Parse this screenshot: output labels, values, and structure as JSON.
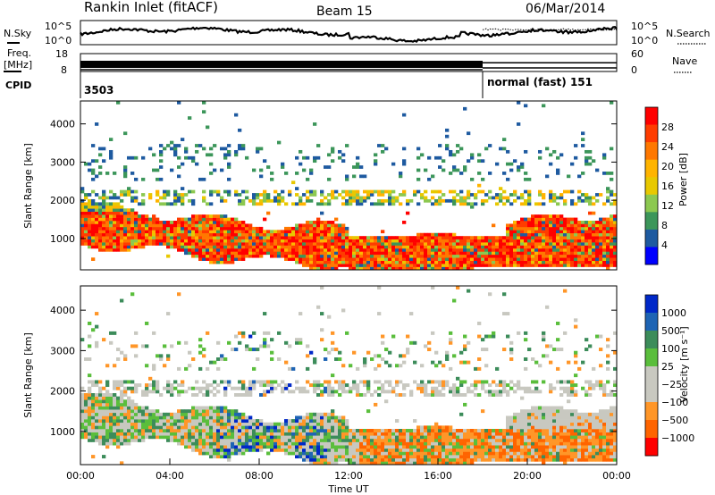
{
  "header": {
    "station": "Rankin Inlet (fitACF)",
    "beam": "Beam 15",
    "date": "06/Mar/2014"
  },
  "top_panels": {
    "nsky_label": "N.Sky",
    "nsearch_label": "N.Search",
    "noise_ticks": [
      "10^5",
      "10^0"
    ],
    "freq_label_line1": "Freq.",
    "freq_label_line2": "[MHz]",
    "freq_ticks": [
      "18",
      "8"
    ],
    "nave_label": "Nave",
    "nave_ticks": [
      "60",
      "0"
    ],
    "cpid_label": "CPID",
    "cpid_segments": [
      {
        "start_hour": 0,
        "end_hour": 18.0,
        "label": "3503"
      },
      {
        "start_hour": 18.0,
        "end_hour": 24,
        "label": "normal (fast) 151"
      }
    ]
  },
  "chart_data": [
    {
      "type": "heatmap",
      "name": "power-panel",
      "ylabel": "Slant Range [km]",
      "xlabel": "",
      "x_range_hours": [
        0,
        24
      ],
      "ylim": [
        180,
        4600
      ],
      "yticks": [
        1000,
        2000,
        3000,
        4000
      ],
      "colorbar_label": "Power [dB]",
      "colorbar_ticks": [
        "28",
        "24",
        "20",
        "16",
        "12",
        "8",
        "4"
      ],
      "colorbar_colors": [
        "#ff0000",
        "#ff3c00",
        "#ff7800",
        "#ffb400",
        "#e8c800",
        "#8cc850",
        "#3c965a",
        "#1e5aa0",
        "#0000ff"
      ]
    },
    {
      "type": "heatmap",
      "name": "velocity-panel",
      "ylabel": "Slant Range [km]",
      "xlabel": "Time UT",
      "x_range_hours": [
        0,
        24
      ],
      "ylim": [
        180,
        4600
      ],
      "yticks": [
        1000,
        2000,
        3000,
        4000
      ],
      "xtick_labels": [
        "00:00",
        "04:00",
        "08:00",
        "12:00",
        "16:00",
        "20:00",
        "00:00"
      ],
      "colorbar_label": "Velocity [m s⁻¹]",
      "colorbar_ticks": [
        "1000",
        "500",
        "100",
        "25",
        "−25",
        "−100",
        "−500",
        "−1000"
      ],
      "colorbar_colors": [
        "#0028c8",
        "#1e64b4",
        "#3c8c5a",
        "#5abe3c",
        "#c8c8c0",
        "#c8c8c0",
        "#ff9628",
        "#ff6400",
        "#ff0000"
      ]
    }
  ]
}
